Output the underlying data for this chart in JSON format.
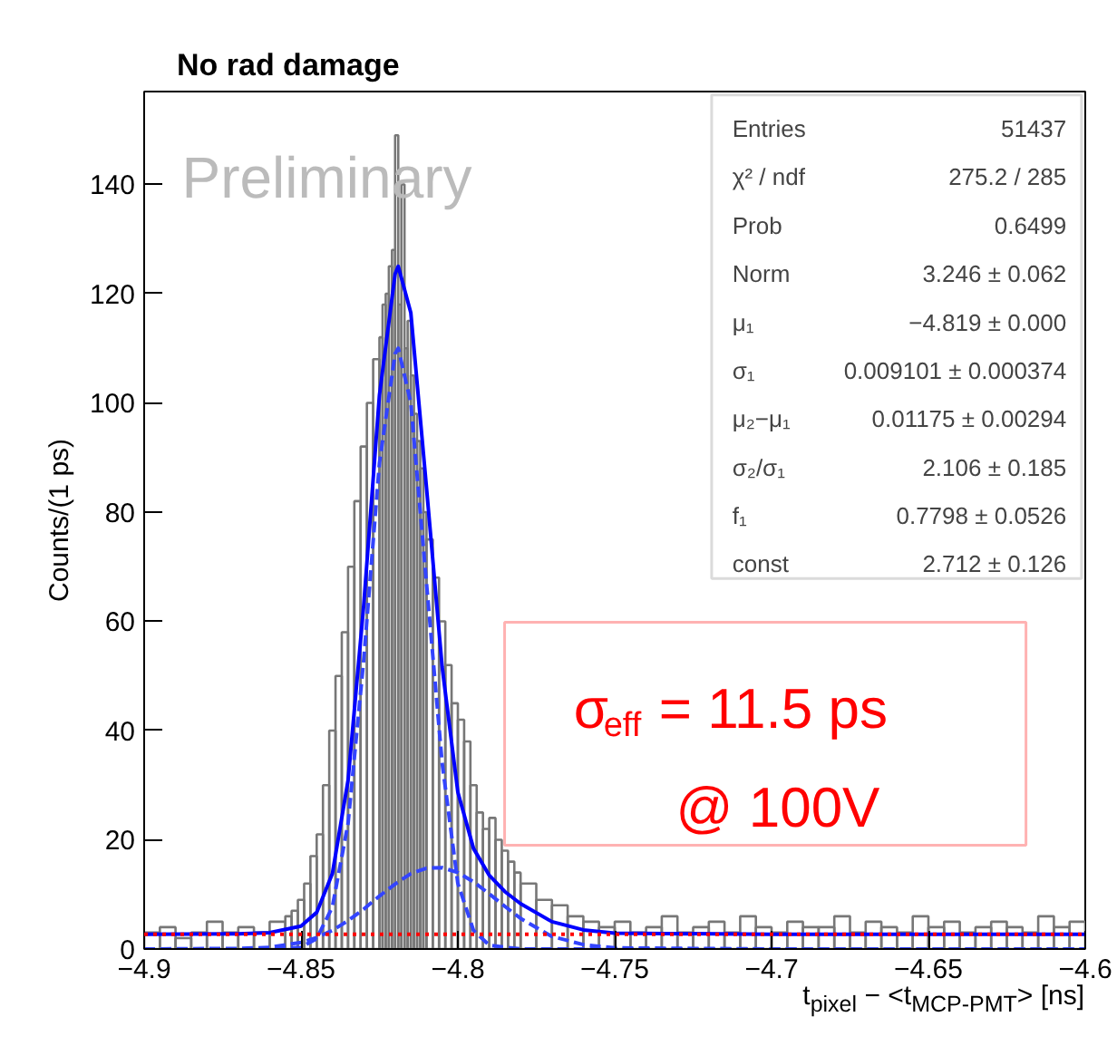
{
  "chart_data": {
    "type": "histogram",
    "title": "No rad damage",
    "xlabel": "t$_{pixel}$ − <t$_{MCP-PMT}$> [ns]",
    "ylabel": "Counts/(1 ps)",
    "xlim": [
      -4.9,
      -4.6
    ],
    "ylim": [
      0,
      157
    ],
    "xticks": [
      {
        "value": -4.9,
        "label": "−4.9"
      },
      {
        "value": -4.85,
        "label": "−4.85"
      },
      {
        "value": -4.8,
        "label": "−4.8"
      },
      {
        "value": -4.75,
        "label": "−4.75"
      },
      {
        "value": -4.7,
        "label": "−4.7"
      },
      {
        "value": -4.65,
        "label": "−4.65"
      },
      {
        "value": -4.6,
        "label": "−4.6"
      }
    ],
    "yticks": [
      0,
      20,
      40,
      60,
      80,
      100,
      120,
      140
    ],
    "color": "#777777",
    "bins": [
      -4.9,
      -4.895,
      -4.89,
      -4.885,
      -4.88,
      -4.875,
      -4.87,
      -4.865,
      -4.86,
      -4.855,
      -4.853,
      -4.851,
      -4.849,
      -4.847,
      -4.845,
      -4.843,
      -4.841,
      -4.839,
      -4.837,
      -4.835,
      -4.833,
      -4.831,
      -4.829,
      -4.827,
      -4.825,
      -4.824,
      -4.823,
      -4.822,
      -4.821,
      -4.82,
      -4.819,
      -4.818,
      -4.817,
      -4.816,
      -4.815,
      -4.814,
      -4.813,
      -4.812,
      -4.811,
      -4.81,
      -4.808,
      -4.806,
      -4.804,
      -4.802,
      -4.8,
      -4.798,
      -4.796,
      -4.794,
      -4.792,
      -4.79,
      -4.788,
      -4.786,
      -4.784,
      -4.782,
      -4.78,
      -4.775,
      -4.77,
      -4.765,
      -4.76,
      -4.755,
      -4.75,
      -4.745,
      -4.74,
      -4.735,
      -4.73,
      -4.725,
      -4.72,
      -4.715,
      -4.71,
      -4.705,
      -4.7,
      -4.695,
      -4.69,
      -4.685,
      -4.68,
      -4.675,
      -4.67,
      -4.665,
      -4.66,
      -4.655,
      -4.65,
      -4.645,
      -4.64,
      -4.635,
      -4.63,
      -4.625,
      -4.62,
      -4.615,
      -4.61,
      -4.605,
      -4.6
    ],
    "values": [
      3,
      4,
      2,
      3,
      5,
      3,
      4,
      3,
      5,
      6,
      7,
      9,
      12,
      17,
      21,
      30,
      40,
      50,
      58,
      70,
      82,
      92,
      100,
      108,
      112,
      118,
      120,
      125,
      128,
      149,
      118,
      140,
      110,
      115,
      105,
      98,
      93,
      88,
      80,
      75,
      68,
      60,
      52,
      45,
      42,
      38,
      30,
      25,
      22,
      24,
      20,
      18,
      16,
      14,
      12,
      9,
      8,
      6,
      5,
      4,
      5,
      3,
      4,
      6,
      3,
      4,
      5,
      3,
      6,
      4,
      3,
      5,
      4,
      4,
      6,
      3,
      5,
      4,
      3,
      6,
      4,
      5,
      3,
      4,
      5,
      4,
      3,
      6,
      4,
      5
    ],
    "series": [
      {
        "type": "line",
        "color": "#0000ff",
        "line_style": "solid",
        "x": [
          -4.9,
          -4.87,
          -4.86,
          -4.85,
          -4.845,
          -4.84,
          -4.835,
          -4.83,
          -4.825,
          -4.82,
          -4.819,
          -4.815,
          -4.81,
          -4.805,
          -4.8,
          -4.795,
          -4.79,
          -4.785,
          -4.78,
          -4.77,
          -4.76,
          -4.75,
          -4.7,
          -4.6
        ],
        "values": [
          2.7,
          2.8,
          3.0,
          4.2,
          6.7,
          13.8,
          30.9,
          63,
          101.4,
          123.6,
          125,
          116.5,
          84.5,
          51.6,
          28.7,
          18.4,
          13.5,
          10.5,
          8.3,
          5,
          3.5,
          2.9,
          2.7,
          2.7
        ]
      },
      {
        "type": "line",
        "color": "#3344ff",
        "line_style": "dashed",
        "x": [
          -4.9,
          -4.86,
          -4.85,
          -4.845,
          -4.84,
          -4.835,
          -4.83,
          -4.825,
          -4.82,
          -4.819,
          -4.815,
          -4.81,
          -4.805,
          -4.8,
          -4.795,
          -4.79,
          -4.78,
          -4.6
        ],
        "values": [
          0,
          0,
          0.3,
          1.9,
          7.7,
          23,
          53,
          89,
          109,
          110,
          100,
          67,
          34,
          12,
          3.4,
          0.7,
          0,
          0
        ]
      },
      {
        "type": "line",
        "color": "#3344ff",
        "line_style": "dashed",
        "x": [
          -4.9,
          -4.87,
          -4.86,
          -4.85,
          -4.845,
          -4.84,
          -4.835,
          -4.83,
          -4.825,
          -4.82,
          -4.815,
          -4.81,
          -4.805,
          -4.8,
          -4.795,
          -4.79,
          -4.785,
          -4.78,
          -4.77,
          -4.76,
          -4.75,
          -4.7,
          -4.6
        ],
        "values": [
          0,
          0.1,
          0.3,
          1.2,
          2.1,
          3.4,
          5.2,
          7.3,
          9.7,
          11.9,
          13.8,
          14.8,
          14.9,
          14,
          12.3,
          10.1,
          7.8,
          5.6,
          2.3,
          0.8,
          0.2,
          0,
          0
        ]
      }
    ],
    "ref_lines": [
      {
        "axis": "y",
        "value": 2.712,
        "color": "#ff0000",
        "line_style": "dotted"
      }
    ],
    "annotations": [
      "Preliminary",
      "Entries",
      "51437",
      "χ² / ndf",
      "275.2 / 285",
      "Prob",
      "0.6499",
      "Norm",
      "3.246 ± 0.062",
      "μ₁",
      "−4.819 ± 0.000",
      "σ₁",
      "0.009101 ± 0.000374",
      "μ₂−μ₁",
      "0.01175 ± 0.00294",
      "σ₂/σ₁",
      "2.106 ± 0.185",
      "f₁",
      "0.7798 ± 0.0526",
      "const",
      "2.712 ± 0.126",
      "σ$_{eff}$ = 11.5 ps",
      "@ 100V"
    ]
  }
}
